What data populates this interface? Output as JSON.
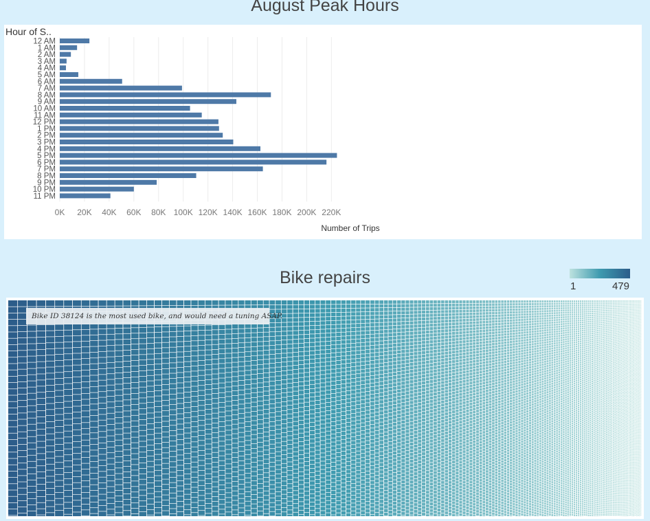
{
  "peak": {
    "title": "August Peak Hours",
    "header": "Hour of S.."
  },
  "repairs": {
    "title": "Bike repairs",
    "annotation": "Bike ID 38124 is the most used bike, and would need a tuning ASAP."
  },
  "legend": {
    "min": "1",
    "max": "479"
  },
  "chart_data": [
    {
      "type": "bar",
      "orientation": "horizontal",
      "title": "August Peak Hours",
      "ylabel": "Hour of S..",
      "xlabel": "Number of Trips",
      "xlim": [
        0,
        230000
      ],
      "x_ticks": [
        "0K",
        "20K",
        "40K",
        "60K",
        "80K",
        "100K",
        "120K",
        "140K",
        "160K",
        "180K",
        "200K",
        "220K"
      ],
      "grid": true,
      "bar_color": "#4e79a7",
      "categories": [
        "12 AM",
        "1 AM",
        "2 AM",
        "3 AM",
        "4 AM",
        "5 AM",
        "6 AM",
        "7 AM",
        "8 AM",
        "9 AM",
        "10 AM",
        "11 AM",
        "12 PM",
        "1 PM",
        "2 PM",
        "3 PM",
        "4 PM",
        "5 PM",
        "6 PM",
        "7 PM",
        "8 PM",
        "9 PM",
        "10 PM",
        "11 PM"
      ],
      "values": [
        24000,
        14000,
        9000,
        5500,
        5000,
        15000,
        50500,
        99000,
        171000,
        143000,
        105500,
        115000,
        128500,
        129000,
        132000,
        140500,
        162500,
        224500,
        216000,
        164500,
        110500,
        78500,
        60000,
        41000
      ]
    },
    {
      "type": "heatmap",
      "subtype": "treemap",
      "title": "Bike repairs",
      "color_range": [
        1,
        479
      ],
      "color_low": "#bde2df",
      "color_high": "#2c5d8a",
      "annotation": "Bike ID 38124 is the most used bike, and would need a tuning ASAP."
    }
  ]
}
